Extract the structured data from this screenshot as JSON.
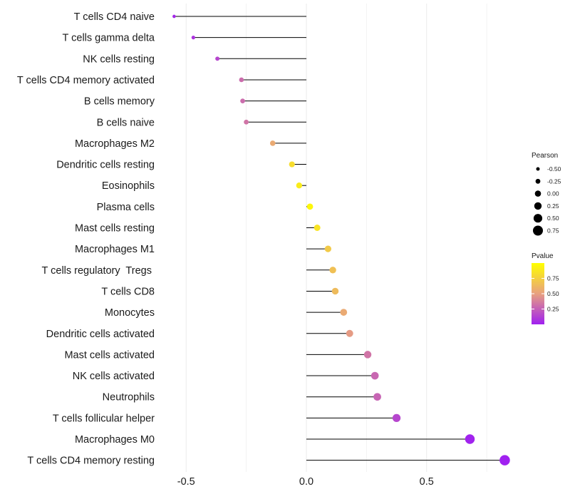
{
  "chart_data": {
    "type": "lollipop",
    "xlim": [
      -0.62,
      0.86
    ],
    "x_ticks": [
      {
        "value": -0.5,
        "label": "-0.5"
      },
      {
        "value": 0.0,
        "label": "0.0"
      },
      {
        "value": 0.5,
        "label": "0.5"
      }
    ],
    "categories": [
      {
        "label": "T cells CD4 naive",
        "pearson": -0.55,
        "pvalue": 0.03
      },
      {
        "label": "T cells gamma delta",
        "pearson": -0.47,
        "pvalue": 0.08
      },
      {
        "label": "NK cells resting",
        "pearson": -0.37,
        "pvalue": 0.15
      },
      {
        "label": "T cells CD4 memory activated",
        "pearson": -0.27,
        "pvalue": 0.3
      },
      {
        "label": "B cells memory",
        "pearson": -0.265,
        "pvalue": 0.3
      },
      {
        "label": "B cells naive",
        "pearson": -0.25,
        "pvalue": 0.33
      },
      {
        "label": "Macrophages M2",
        "pearson": -0.14,
        "pvalue": 0.55
      },
      {
        "label": "Dendritic cells resting",
        "pearson": -0.06,
        "pvalue": 0.82
      },
      {
        "label": "Eosinophils",
        "pearson": -0.03,
        "pvalue": 0.9
      },
      {
        "label": "Plasma cells",
        "pearson": 0.015,
        "pvalue": 0.96
      },
      {
        "label": "Mast cells resting",
        "pearson": 0.045,
        "pvalue": 0.86
      },
      {
        "label": "Macrophages M1",
        "pearson": 0.09,
        "pvalue": 0.72
      },
      {
        "label": "T cells regulatory  Tregs ",
        "pearson": 0.11,
        "pvalue": 0.67
      },
      {
        "label": "T cells CD8",
        "pearson": 0.12,
        "pvalue": 0.64
      },
      {
        "label": "Monocytes",
        "pearson": 0.155,
        "pvalue": 0.55
      },
      {
        "label": "Dendritic cells activated",
        "pearson": 0.18,
        "pvalue": 0.48
      },
      {
        "label": "Mast cells activated",
        "pearson": 0.255,
        "pvalue": 0.33
      },
      {
        "label": "NK cells activated",
        "pearson": 0.285,
        "pvalue": 0.28
      },
      {
        "label": "Neutrophils",
        "pearson": 0.295,
        "pvalue": 0.27
      },
      {
        "label": "T cells follicular helper",
        "pearson": 0.375,
        "pvalue": 0.15
      },
      {
        "label": "Macrophages M0",
        "pearson": 0.68,
        "pvalue": 0.01
      },
      {
        "label": "T cells CD4 memory resting",
        "pearson": 0.825,
        "pvalue": 0.002
      }
    ],
    "legend_size": {
      "title": "Pearson",
      "entries": [
        {
          "value": -0.5,
          "label": "-0.50"
        },
        {
          "value": -0.25,
          "label": "-0.25"
        },
        {
          "value": 0.0,
          "label": "0.00"
        },
        {
          "value": 0.25,
          "label": "0.25"
        },
        {
          "value": 0.5,
          "label": "0.50"
        },
        {
          "value": 0.75,
          "label": "0.75"
        }
      ]
    },
    "legend_color": {
      "title": "Pvalue",
      "range": [
        0.0,
        1.0
      ],
      "ticks": [
        {
          "value": 0.75,
          "label": "0.75"
        },
        {
          "value": 0.5,
          "label": "0.50"
        },
        {
          "value": 0.25,
          "label": "0.25"
        }
      ],
      "color_low": "#a020f0",
      "color_mid": "#e8a080",
      "color_high": "#ffff00"
    },
    "colors": {
      "stem": "#000000",
      "grid": "#ebebeb",
      "background": "#ffffff"
    }
  }
}
